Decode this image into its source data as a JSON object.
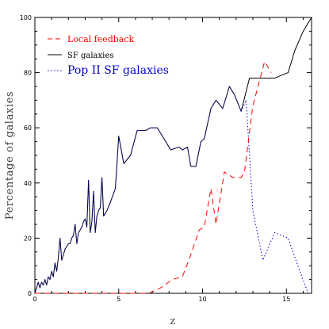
{
  "chart_data": {
    "type": "line",
    "title": "",
    "xlabel": "z",
    "ylabel": "Percentage of galaxies",
    "xlim": [
      0,
      16.5
    ],
    "ylim": [
      0,
      100
    ],
    "xticks": [
      0,
      5,
      10,
      15
    ],
    "yticks": [
      0,
      20,
      40,
      60,
      80,
      100
    ],
    "legend": "top-left",
    "series": [
      {
        "name": "Local feedback",
        "color": "#ff0000",
        "style": "dashed",
        "x": [
          0,
          6.8,
          7.5,
          8.2,
          8.8,
          9.3,
          9.8,
          10.1,
          10.5,
          10.8,
          11.3,
          11.8,
          12.3,
          12.5,
          13.0,
          13.7,
          14.1
        ],
        "y": [
          0,
          0,
          2,
          5,
          6,
          14,
          23,
          24,
          38,
          25,
          44,
          42,
          42,
          44,
          68,
          84,
          80
        ]
      },
      {
        "name": "SF galaxies",
        "color": "#000000",
        "style": "solid",
        "x": [
          0,
          0.1,
          0.2,
          0.3,
          0.4,
          0.5,
          0.6,
          0.7,
          0.8,
          0.9,
          1.0,
          1.1,
          1.2,
          1.3,
          1.4,
          1.5,
          1.6,
          1.7,
          1.8,
          1.9,
          2.0,
          2.1,
          2.2,
          2.3,
          2.4,
          2.5,
          2.6,
          2.7,
          2.8,
          2.9,
          3.0,
          3.1,
          3.2,
          3.3,
          3.4,
          3.5,
          3.6,
          3.7,
          3.8,
          3.9,
          4.0,
          4.1,
          4.3,
          4.5,
          4.8,
          5.0,
          5.3,
          5.7,
          6.1,
          6.6,
          6.9,
          7.3,
          7.5,
          8.1,
          8.6,
          8.8,
          9.1,
          9.3,
          9.6,
          9.9,
          10.1,
          10.5,
          10.8,
          11.2,
          11.6,
          11.9,
          12.3,
          12.8,
          13.2,
          13.7,
          14.3,
          15.1,
          15.5,
          16.0,
          16.5
        ],
        "y": [
          0,
          2,
          4,
          2,
          4,
          3,
          5,
          3,
          6,
          5,
          8,
          6,
          11,
          8,
          13,
          20,
          12,
          14,
          16,
          17,
          18,
          18,
          20,
          21,
          25,
          18,
          22,
          23,
          24,
          26,
          27,
          24,
          41,
          22,
          26,
          37,
          22,
          28,
          30,
          31,
          42,
          28,
          30,
          33,
          38,
          57,
          47,
          50,
          59,
          59,
          60,
          60,
          58,
          52,
          53,
          52,
          53,
          46,
          46,
          55,
          56,
          67,
          70,
          67,
          75,
          72,
          66,
          78,
          78,
          78,
          78,
          80,
          88,
          95,
          100
        ]
      },
      {
        "name": "Pop II SF galaxies",
        "color": "#0000cc",
        "style": "dotted",
        "x": [
          0,
          0.1,
          0.2,
          0.3,
          0.4,
          0.5,
          0.6,
          0.7,
          0.8,
          0.9,
          1.0,
          1.1,
          1.2,
          1.3,
          1.4,
          1.5,
          1.6,
          1.7,
          1.8,
          1.9,
          2.0,
          2.1,
          2.2,
          2.3,
          2.4,
          2.5,
          2.6,
          2.7,
          2.8,
          2.9,
          3.0,
          3.1,
          3.2,
          3.3,
          3.4,
          3.5,
          3.6,
          3.7,
          3.8,
          3.9,
          4.0,
          4.1,
          4.3,
          4.5,
          4.8,
          5.0,
          5.3,
          5.7,
          6.1,
          6.6,
          6.9,
          7.3,
          7.5,
          8.1,
          8.6,
          8.8,
          9.1,
          9.3,
          9.6,
          9.9,
          10.1,
          10.5,
          10.8,
          11.2,
          11.6,
          11.9,
          12.3,
          12.6,
          13.0,
          13.6,
          14.3,
          15.1,
          15.8,
          16.3
        ],
        "y": [
          0,
          2,
          4,
          2,
          4,
          3,
          5,
          3,
          6,
          5,
          8,
          6,
          11,
          8,
          13,
          20,
          12,
          14,
          16,
          17,
          18,
          18,
          20,
          21,
          25,
          18,
          22,
          23,
          24,
          26,
          27,
          24,
          41,
          22,
          26,
          37,
          22,
          28,
          30,
          31,
          42,
          28,
          30,
          33,
          38,
          57,
          47,
          50,
          59,
          59,
          60,
          60,
          58,
          52,
          53,
          52,
          53,
          46,
          46,
          55,
          56,
          67,
          70,
          67,
          75,
          72,
          66,
          70,
          30,
          12,
          22,
          20,
          8,
          0
        ]
      }
    ]
  }
}
